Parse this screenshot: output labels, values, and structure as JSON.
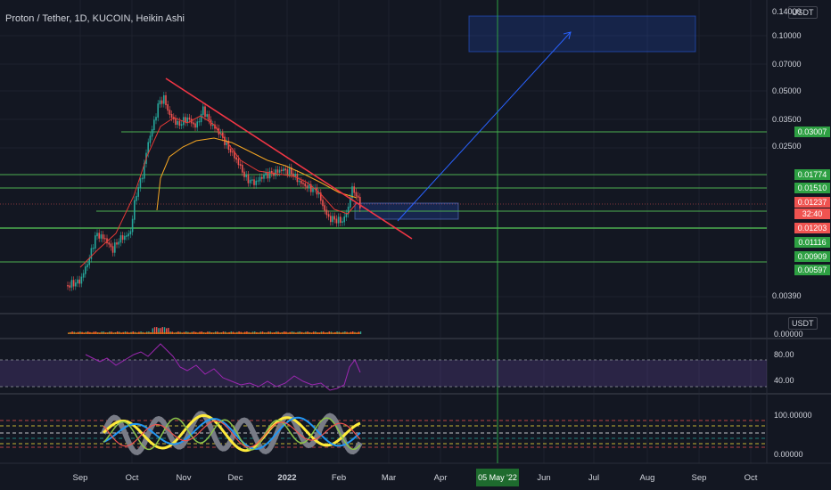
{
  "header": {
    "title": "Proton / Tether, 1D, KUCOIN, Heikin Ashi"
  },
  "currency_badge": "USDT",
  "price_axis_labels": [
    "0.14000",
    "0.10000",
    "0.07000",
    "0.05000",
    "0.03500",
    "0.02500",
    "0.00390"
  ],
  "price_tags": [
    {
      "value": "0.03007",
      "color": "#2ea043"
    },
    {
      "value": "0.01774",
      "color": "#2ea043"
    },
    {
      "value": "0.01510",
      "color": "#2ea043"
    },
    {
      "value": "0.01237",
      "color": "#ef5350"
    },
    {
      "value": "32:40",
      "color": "#ef5350"
    },
    {
      "value": "0.01203",
      "color": "#ef5350"
    },
    {
      "value": "0.01116",
      "color": "#2ea043"
    },
    {
      "value": "0.00909",
      "color": "#2ea043"
    },
    {
      "value": "0.00597",
      "color": "#2ea043"
    }
  ],
  "volume_pane": {
    "badge": "USDT",
    "axis_label": "0.00000"
  },
  "rsi_pane": {
    "levels": [
      "80.00",
      "40.00"
    ]
  },
  "osc_pane": {
    "levels": [
      "100.00000",
      "0.00000"
    ]
  },
  "time_axis": {
    "labels": [
      "Sep",
      "Oct",
      "Nov",
      "Dec",
      "2022",
      "Feb",
      "Mar",
      "Apr",
      "Jun",
      "Jul",
      "Aug",
      "Sep",
      "Oct"
    ],
    "highlight": "05 May '22"
  },
  "chart_data": {
    "type": "candlestick",
    "symbol": "Proton / Tether",
    "interval": "1D",
    "exchange": "KUCOIN",
    "style": "Heikin Ashi",
    "y_scale": "log",
    "horizontal_levels": [
      0.03007,
      0.01774,
      0.0151,
      0.01203,
      0.01116,
      0.00909,
      0.00597
    ],
    "last_price": 0.01237
  },
  "colors": {
    "up": "#26a69a",
    "down": "#ef5350",
    "level": "#4caf50",
    "trend": "#f23645",
    "arrow": "#2962ff",
    "rsi": "#9c27b0"
  }
}
